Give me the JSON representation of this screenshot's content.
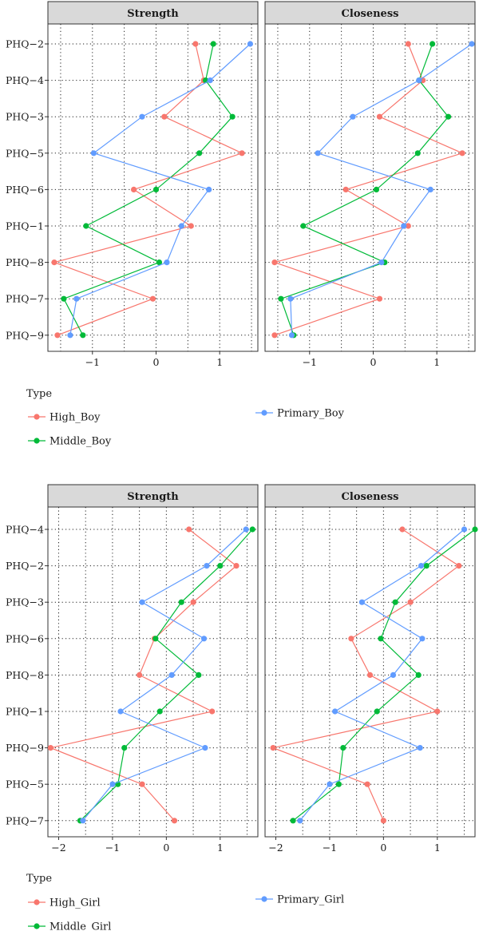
{
  "chart_data": [
    {
      "type": "line",
      "group": "Boy",
      "panels": [
        "Strength",
        "Closeness"
      ],
      "nodes": [
        "PHQ−2",
        "PHQ−4",
        "PHQ−3",
        "PHQ−5",
        "PHQ−6",
        "PHQ−1",
        "PHQ−8",
        "PHQ−7",
        "PHQ−9"
      ],
      "xlim": [
        -1.7,
        1.6
      ],
      "xticks": [
        -1,
        0,
        1
      ],
      "xtick_labels": [
        "−1",
        "0",
        "1"
      ],
      "grid": true,
      "legend_title": "Type",
      "series": [
        {
          "name": "High_Boy",
          "color": "#f8766d",
          "Strength": [
            0.62,
            0.75,
            0.13,
            1.35,
            -0.35,
            0.55,
            -1.6,
            -0.05,
            -1.55
          ],
          "Closeness": [
            0.55,
            0.78,
            0.1,
            1.4,
            -0.43,
            0.55,
            -1.55,
            0.1,
            -1.55
          ]
        },
        {
          "name": "Middle_Boy",
          "color": "#00ba38",
          "Strength": [
            0.9,
            0.78,
            1.2,
            0.68,
            0.0,
            -1.1,
            0.05,
            -1.45,
            -1.15
          ],
          "Closeness": [
            0.93,
            0.72,
            1.18,
            0.7,
            0.05,
            -1.1,
            0.18,
            -1.45,
            -1.25
          ]
        },
        {
          "name": "Primary_Boy",
          "color": "#619cff",
          "Strength": [
            1.48,
            0.85,
            -0.22,
            -0.98,
            0.83,
            0.4,
            0.17,
            -1.25,
            -1.35
          ],
          "Closeness": [
            1.55,
            0.72,
            -0.32,
            -0.87,
            0.9,
            0.48,
            0.13,
            -1.3,
            -1.28
          ]
        }
      ]
    },
    {
      "type": "line",
      "group": "Girl",
      "panels": [
        "Strength",
        "Closeness"
      ],
      "nodes": [
        "PHQ−4",
        "PHQ−2",
        "PHQ−3",
        "PHQ−6",
        "PHQ−8",
        "PHQ−1",
        "PHQ−9",
        "PHQ−5",
        "PHQ−7"
      ],
      "xlim": [
        -2.2,
        1.7
      ],
      "xticks": [
        -2,
        -1,
        0,
        1
      ],
      "xtick_labels": [
        "−2",
        "−1",
        "0",
        "1"
      ],
      "grid": true,
      "legend_title": "Type",
      "series": [
        {
          "name": "High_Girl",
          "color": "#f8766d",
          "Strength": [
            0.42,
            1.3,
            0.5,
            -0.22,
            -0.5,
            0.85,
            -2.15,
            -0.45,
            0.15
          ],
          "Closeness": [
            0.35,
            1.4,
            0.5,
            -0.6,
            -0.25,
            1.0,
            -2.05,
            -0.3,
            0.0
          ]
        },
        {
          "name": "Middle_Girl",
          "color": "#00ba38",
          "Strength": [
            1.6,
            1.0,
            0.28,
            -0.2,
            0.6,
            -0.12,
            -0.78,
            -0.9,
            -1.6
          ],
          "Closeness": [
            1.7,
            0.8,
            0.22,
            -0.05,
            0.65,
            -0.12,
            -0.75,
            -0.83,
            -1.68
          ]
        },
        {
          "name": "Primary_Girl",
          "color": "#619cff",
          "Strength": [
            1.48,
            0.75,
            -0.45,
            0.7,
            0.1,
            -0.85,
            0.72,
            -1.0,
            -1.55
          ],
          "Closeness": [
            1.5,
            0.7,
            -0.4,
            0.72,
            0.18,
            -0.9,
            0.68,
            -1.0,
            -1.55
          ]
        }
      ]
    }
  ]
}
